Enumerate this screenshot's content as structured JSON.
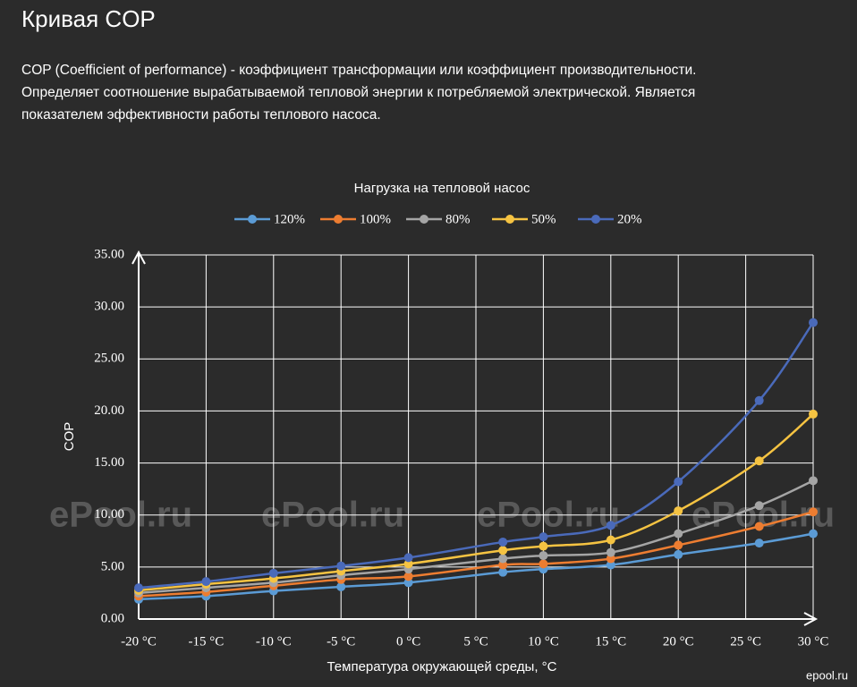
{
  "header": {
    "title": "Кривая COP",
    "description": [
      "COP (Coefficient of performance) - коэффициент трансформации или коэффициент производительности.",
      "Определяет соотношение вырабатываемой тепловой энергии к потребляемой электрической. Является",
      "показателем эффективности работы теплового насоса."
    ]
  },
  "watermark": "ePool.ru",
  "corner_mark": "epool.ru",
  "chart_data": {
    "type": "line",
    "title": "Нагрузка на тепловой насос",
    "x_label": "Температура окружающей среды, °C",
    "y_label": "COP",
    "x": [
      -20,
      -15,
      -10,
      -5,
      0,
      7,
      10,
      15,
      20,
      26,
      30
    ],
    "series": [
      {
        "name": "120%",
        "color": "#5b9bd5",
        "values": [
          1.9,
          2.2,
          2.7,
          3.1,
          3.5,
          4.5,
          4.8,
          5.2,
          6.2,
          7.3,
          8.2
        ]
      },
      {
        "name": "100%",
        "color": "#ed7d31",
        "values": [
          2.2,
          2.6,
          3.2,
          3.8,
          4.1,
          5.2,
          5.3,
          5.8,
          7.1,
          8.9,
          10.3
        ]
      },
      {
        "name": "80%",
        "color": "#a5a5a5",
        "values": [
          2.5,
          3.0,
          3.5,
          4.2,
          4.8,
          5.8,
          6.1,
          6.4,
          8.2,
          10.9,
          13.3
        ]
      },
      {
        "name": "50%",
        "color": "#f5c342",
        "values": [
          2.75,
          3.35,
          3.9,
          4.6,
          5.3,
          6.6,
          7.0,
          7.6,
          10.4,
          15.2,
          19.7
        ]
      },
      {
        "name": "20%",
        "color": "#4a6aba",
        "values": [
          3.0,
          3.6,
          4.4,
          5.1,
          5.9,
          7.4,
          7.9,
          9.0,
          13.2,
          21.0,
          28.5
        ]
      }
    ],
    "xlim": [
      -20,
      30
    ],
    "xticks": [
      {
        "value": -20,
        "label": "-20 °C"
      },
      {
        "value": -15,
        "label": "-15 °C"
      },
      {
        "value": -10,
        "label": "-10 °C"
      },
      {
        "value": -5,
        "label": "-5 °C"
      },
      {
        "value": 0,
        "label": "0 °C"
      },
      {
        "value": 5,
        "label": "5 °C"
      },
      {
        "value": 10,
        "label": "10 °C"
      },
      {
        "value": 15,
        "label": "15 °C"
      },
      {
        "value": 20,
        "label": "20 °C"
      },
      {
        "value": 25,
        "label": "25 °C"
      },
      {
        "value": 30,
        "label": "30 °C"
      }
    ],
    "ylim": [
      0,
      35
    ],
    "yticks": [
      {
        "value": 0,
        "label": "0.00"
      },
      {
        "value": 5,
        "label": "5.00"
      },
      {
        "value": 10,
        "label": "10.00"
      },
      {
        "value": 15,
        "label": "15.00"
      },
      {
        "value": 20,
        "label": "20.00"
      },
      {
        "value": 25,
        "label": "25.00"
      },
      {
        "value": 30,
        "label": "30.00"
      },
      {
        "value": 35,
        "label": "35.00"
      }
    ],
    "grid": true,
    "legend": "top"
  }
}
